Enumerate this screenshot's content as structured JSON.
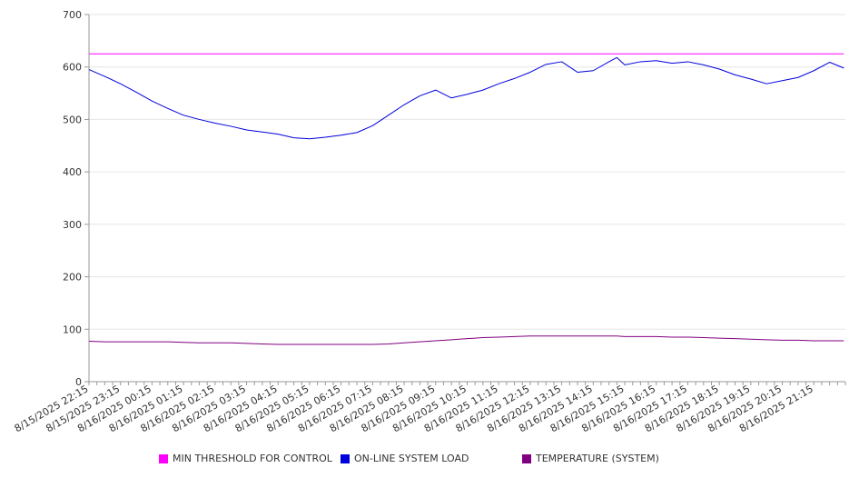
{
  "chart_data": {
    "type": "line",
    "ylim": [
      0,
      700
    ],
    "yticks": [
      0,
      100,
      200,
      300,
      400,
      500,
      600,
      700
    ],
    "grid": true,
    "legend_position": "bottom",
    "x_tick_labels": [
      "8/15/2025 22:15",
      "8/15/2025 23:15",
      "8/16/2025 00:15",
      "8/16/2025 01:15",
      "8/16/2025 02:15",
      "8/16/2025 03:15",
      "8/16/2025 04:15",
      "8/16/2025 05:15",
      "8/16/2025 06:15",
      "8/16/2025 07:15",
      "8/16/2025 08:15",
      "8/16/2025 09:15",
      "8/16/2025 10:15",
      "8/16/2025 11:15",
      "8/16/2025 12:15",
      "8/16/2025 13:15",
      "8/16/2025 14:15",
      "8/16/2025 15:15",
      "8/16/2025 16:15",
      "8/16/2025 17:15",
      "8/16/2025 18:15",
      "8/16/2025 19:15",
      "8/16/2025 20:15",
      "8/16/2025 21:15"
    ],
    "x_hours": [
      0,
      0.5,
      1,
      1.5,
      2,
      2.5,
      3,
      3.5,
      4,
      4.5,
      5,
      5.5,
      6,
      6.5,
      7,
      7.5,
      8,
      8.5,
      9,
      9.5,
      10,
      10.5,
      11,
      11.5,
      12,
      12.25,
      12.5,
      13,
      13.5,
      14,
      14.5,
      15,
      15.5,
      16,
      16.5,
      16.75,
      17,
      17.5,
      18,
      18.5,
      19,
      19.5,
      20,
      20.5,
      21,
      21.5,
      22,
      22.5,
      23,
      23.5,
      23.95
    ],
    "series": [
      {
        "name": "MIN THRESHOLD FOR CONTROL",
        "color": "#ff00ff",
        "values": [
          625,
          625,
          625,
          625,
          625,
          625,
          625,
          625,
          625,
          625,
          625,
          625,
          625,
          625,
          625,
          625,
          625,
          625,
          625,
          625,
          625,
          625,
          625,
          625,
          625,
          625,
          625,
          625,
          625,
          625,
          625,
          625,
          625,
          625,
          625,
          625,
          625,
          625,
          625,
          625,
          625,
          625,
          625,
          625,
          625,
          625,
          625,
          625,
          625,
          625,
          625
        ]
      },
      {
        "name": "ON-LINE SYSTEM LOAD",
        "color": "#0000dd",
        "values": [
          595,
          582,
          568,
          552,
          535,
          521,
          508,
          500,
          493,
          487,
          480,
          476,
          472,
          465,
          463,
          466,
          470,
          475,
          488,
          508,
          528,
          545,
          556,
          541,
          548,
          552,
          556,
          568,
          578,
          590,
          605,
          610,
          590,
          593,
          610,
          618,
          604,
          610,
          612,
          607,
          610,
          604,
          596,
          585,
          577,
          568,
          574,
          580,
          593,
          609,
          598
        ]
      },
      {
        "name": "TEMPERATURE (SYSTEM)",
        "color": "#800080",
        "values": [
          77,
          76,
          76,
          76,
          76,
          76,
          75,
          74,
          74,
          74,
          73,
          72,
          71,
          71,
          71,
          71,
          71,
          71,
          71,
          72,
          74,
          76,
          78,
          80,
          82,
          83,
          84,
          85,
          86,
          87,
          87,
          87,
          87,
          87,
          87,
          87,
          86,
          86,
          86,
          85,
          85,
          84,
          83,
          82,
          81,
          80,
          79,
          79,
          78,
          78,
          78
        ]
      }
    ]
  }
}
